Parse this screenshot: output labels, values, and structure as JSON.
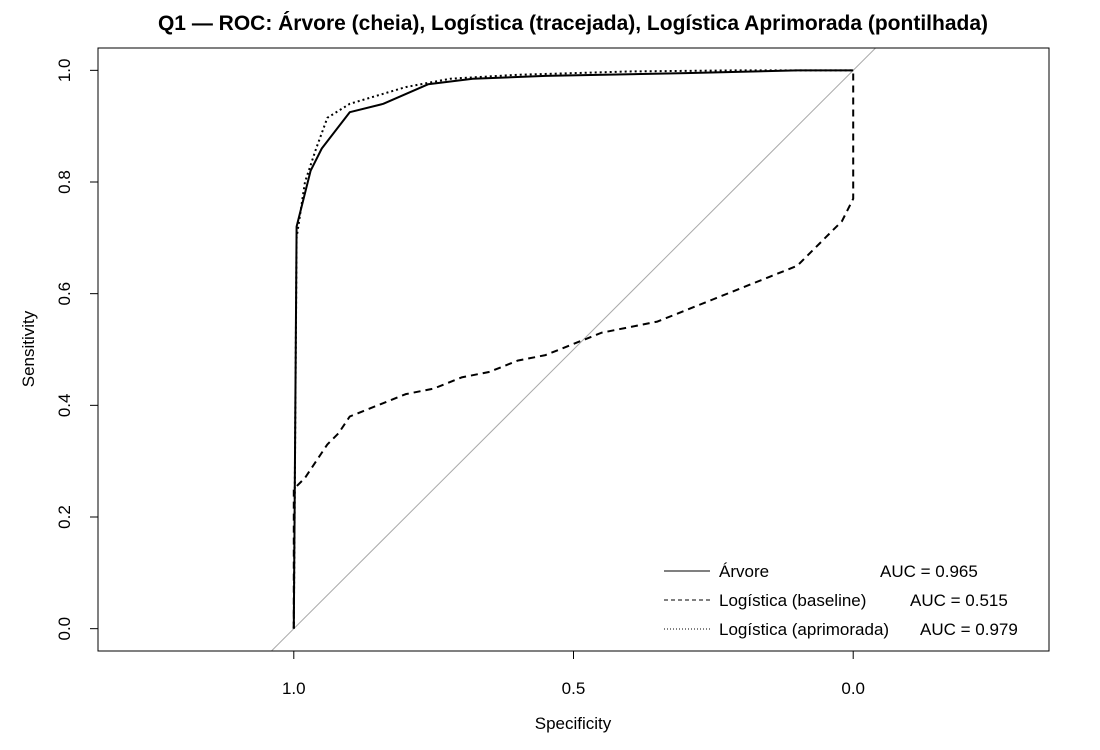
{
  "chart_data": {
    "type": "line",
    "title": "Q1 — ROC: Árvore (cheia), Logística (tracejada), Logística Aprimorada (pontilhada)",
    "xlabel": "Specificity",
    "ylabel": "Sensitivity",
    "xlim": [
      1.35,
      -0.35
    ],
    "ylim": [
      -0.04,
      1.04
    ],
    "x_axis_reversed": true,
    "x_ticks": [
      1.0,
      0.5,
      0.0
    ],
    "x_tick_labels": [
      "1.0",
      "0.5",
      "0.0"
    ],
    "y_ticks": [
      0.0,
      0.2,
      0.4,
      0.6,
      0.8,
      1.0
    ],
    "y_tick_labels": [
      "0.0",
      "0.2",
      "0.4",
      "0.6",
      "0.8",
      "1.0"
    ],
    "grid": false,
    "legend_position": "bottom-right",
    "reference_line": {
      "from": [
        1.0,
        0.0
      ],
      "to": [
        0.0,
        1.0
      ],
      "color": "#aaaaaa"
    },
    "series": [
      {
        "name": "Árvore",
        "legend_label": "Árvore",
        "auc_label": "AUC = 0.965",
        "style": "solid",
        "points": [
          [
            1.0,
            0.0
          ],
          [
            0.995,
            0.72
          ],
          [
            0.97,
            0.82
          ],
          [
            0.95,
            0.86
          ],
          [
            0.9,
            0.925
          ],
          [
            0.84,
            0.94
          ],
          [
            0.76,
            0.975
          ],
          [
            0.68,
            0.985
          ],
          [
            0.55,
            0.99
          ],
          [
            0.3,
            0.995
          ],
          [
            0.1,
            1.0
          ],
          [
            0.0,
            1.0
          ]
        ]
      },
      {
        "name": "Logística (baseline)",
        "legend_label": "Logística (baseline)",
        "auc_label": "AUC = 0.515",
        "style": "dashed",
        "points": [
          [
            1.0,
            0.0
          ],
          [
            1.0,
            0.25
          ],
          [
            0.98,
            0.27
          ],
          [
            0.96,
            0.3
          ],
          [
            0.94,
            0.33
          ],
          [
            0.92,
            0.35
          ],
          [
            0.9,
            0.38
          ],
          [
            0.85,
            0.4
          ],
          [
            0.8,
            0.42
          ],
          [
            0.75,
            0.43
          ],
          [
            0.7,
            0.45
          ],
          [
            0.65,
            0.46
          ],
          [
            0.6,
            0.48
          ],
          [
            0.55,
            0.49
          ],
          [
            0.5,
            0.51
          ],
          [
            0.45,
            0.53
          ],
          [
            0.4,
            0.54
          ],
          [
            0.35,
            0.55
          ],
          [
            0.3,
            0.57
          ],
          [
            0.25,
            0.59
          ],
          [
            0.2,
            0.61
          ],
          [
            0.15,
            0.63
          ],
          [
            0.1,
            0.65
          ],
          [
            0.08,
            0.67
          ],
          [
            0.05,
            0.7
          ],
          [
            0.02,
            0.73
          ],
          [
            0.0,
            0.77
          ],
          [
            0.0,
            1.0
          ]
        ]
      },
      {
        "name": "Logística (aprimorada)",
        "legend_label": "Logística (aprimorada)",
        "auc_label": "AUC = 0.979",
        "style": "dotted",
        "points": [
          [
            1.0,
            0.0
          ],
          [
            0.995,
            0.7
          ],
          [
            0.98,
            0.8
          ],
          [
            0.96,
            0.86
          ],
          [
            0.94,
            0.915
          ],
          [
            0.9,
            0.94
          ],
          [
            0.85,
            0.955
          ],
          [
            0.8,
            0.97
          ],
          [
            0.72,
            0.985
          ],
          [
            0.6,
            0.992
          ],
          [
            0.4,
            0.998
          ],
          [
            0.2,
            1.0
          ],
          [
            0.0,
            1.0
          ]
        ]
      }
    ]
  }
}
